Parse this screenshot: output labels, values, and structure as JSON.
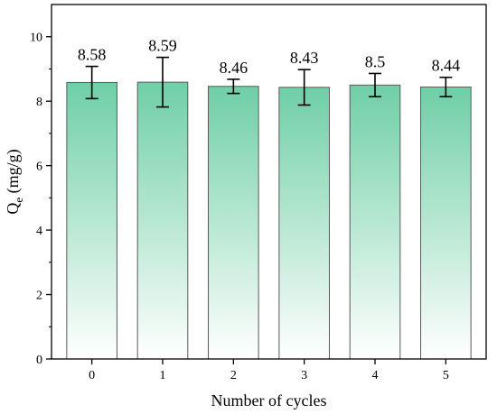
{
  "chart_data": {
    "type": "bar",
    "categories": [
      "0",
      "1",
      "2",
      "3",
      "4",
      "5"
    ],
    "values": [
      8.58,
      8.59,
      8.46,
      8.43,
      8.5,
      8.44
    ],
    "errors": [
      0.5,
      0.77,
      0.22,
      0.55,
      0.36,
      0.3
    ],
    "data_labels": [
      "8.58",
      "8.59",
      "8.46",
      "8.43",
      "8.5",
      "8.44"
    ],
    "xlabel": "Number of cycles",
    "ylabel": {
      "main": "Q",
      "subscript": "e",
      "rest": " (mg/g)"
    },
    "ylim": [
      0,
      11
    ],
    "yticks": [
      0,
      2,
      4,
      6,
      8,
      10
    ],
    "grid": false,
    "legend": "none",
    "colors": {
      "bar_top": "#6fcfa6",
      "bar_bottom": "#ffffff",
      "bar_edge": "#5a5a5a",
      "axis": "#000000"
    }
  }
}
